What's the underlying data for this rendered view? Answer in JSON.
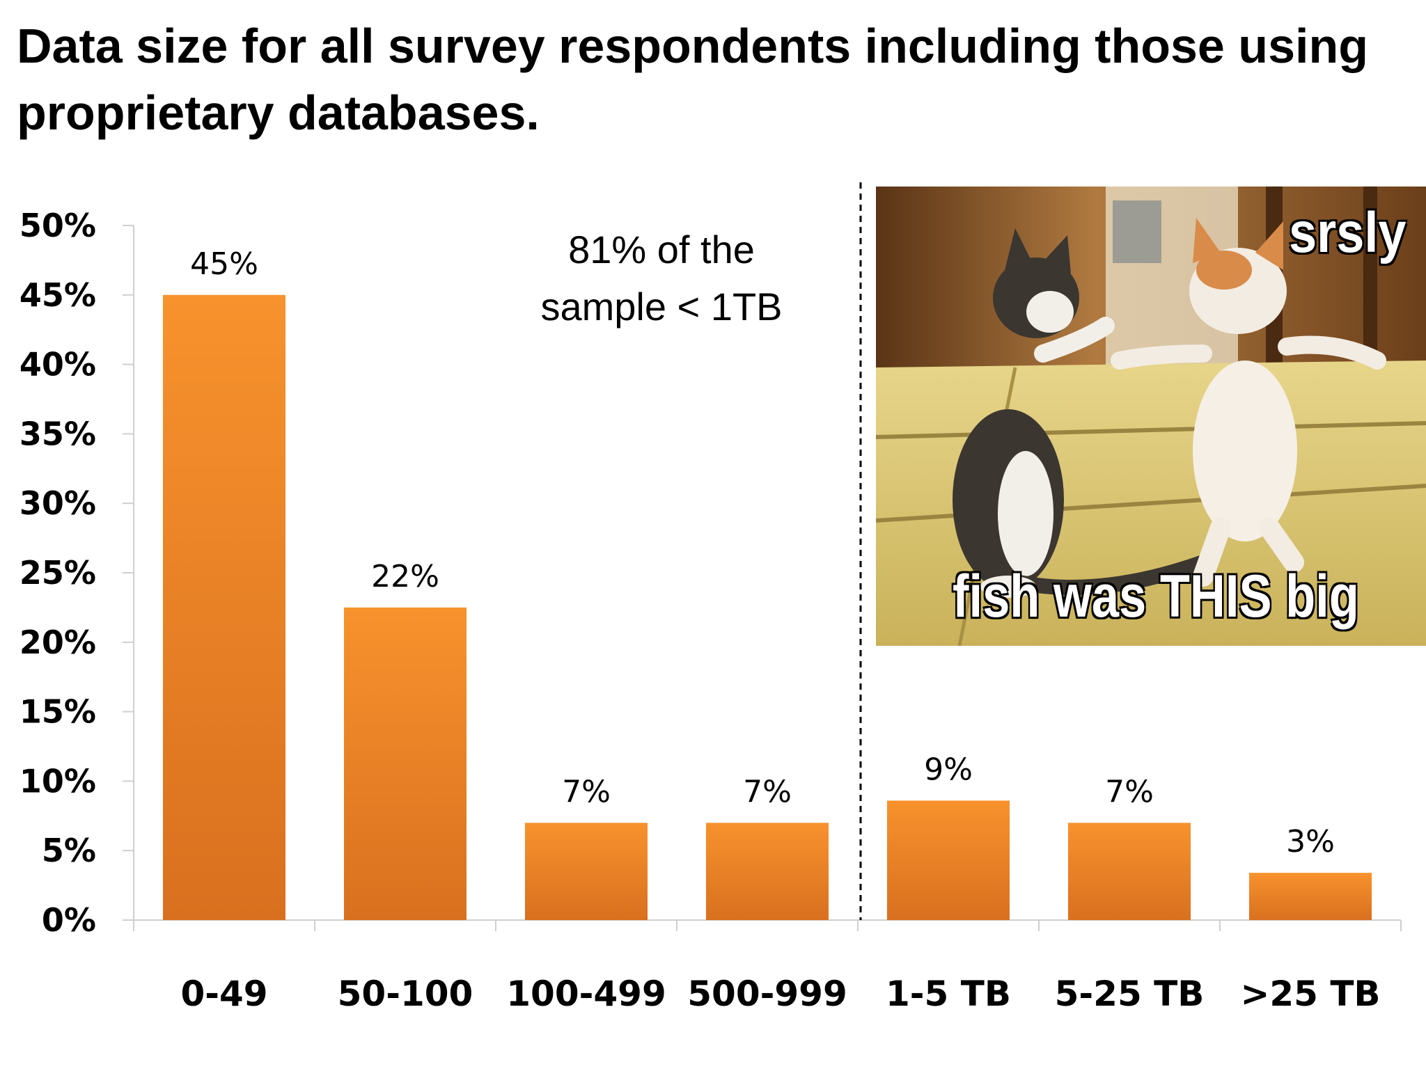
{
  "title": "Data size for all survey respondents including those using proprietary databases.",
  "annotation": {
    "line1": "81% of the",
    "line2": "sample < 1TB"
  },
  "meme": {
    "caption_top": "srsly",
    "caption_bottom": "fish was THIS big"
  },
  "colors": {
    "bar_top": "#f7922d",
    "bar_bottom": "#d9701f",
    "axis": "#cfcfcf",
    "divider": "#000000"
  },
  "chart_data": {
    "type": "bar",
    "categories": [
      "0-49",
      "50-100",
      "100-499",
      "500-999",
      "1-5 TB",
      "5-25 TB",
      ">25 TB"
    ],
    "values": [
      45,
      22.5,
      7,
      7,
      8.6,
      7,
      3.4
    ],
    "data_labels": [
      "45%",
      "22%",
      "7%",
      "7%",
      "9%",
      "7%",
      "3%"
    ],
    "y_ticks": [
      "0%",
      "5%",
      "10%",
      "15%",
      "20%",
      "25%",
      "30%",
      "35%",
      "40%",
      "45%",
      "50%"
    ],
    "ylim": [
      0,
      50
    ],
    "divider_after_category": "500-999",
    "grid": false,
    "title": "Data size for all survey respondents including those using proprietary databases."
  }
}
